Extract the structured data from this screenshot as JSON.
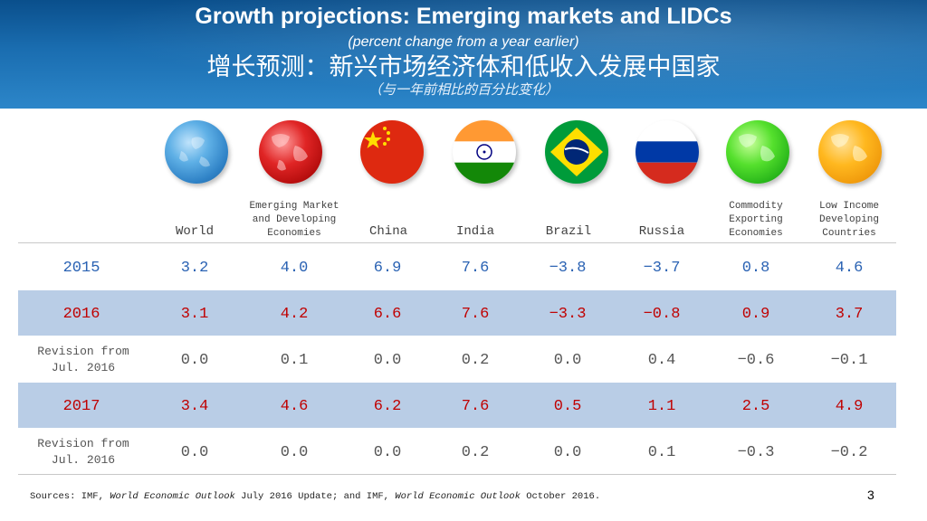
{
  "header": {
    "title_en": "Growth projections:  Emerging markets and LIDCs",
    "subtitle_en": "(percent change from a year earlier)",
    "title_cn": "增长预测：新兴市场经济体和低收入发展中国家",
    "subtitle_cn": "（与一年前相比的百分比变化）"
  },
  "columns": [
    {
      "label": "World",
      "icon": "world-globe-icon"
    },
    {
      "label": "Emerging Market and Developing Economies",
      "icon": "emerging-markets-globe-icon"
    },
    {
      "label": "China",
      "icon": "china-flag-icon"
    },
    {
      "label": "India",
      "icon": "india-flag-icon"
    },
    {
      "label": "Brazil",
      "icon": "brazil-flag-icon"
    },
    {
      "label": "Russia",
      "icon": "russia-flag-icon"
    },
    {
      "label": "Commodity Exporting Economies",
      "icon": "commodity-exporters-globe-icon"
    },
    {
      "label": "Low Income Developing Countries",
      "icon": "lidc-globe-icon"
    }
  ],
  "rows": [
    {
      "label": "2015",
      "values": [
        "3.2",
        "4.0",
        "6.9",
        "7.6",
        "−3.8",
        "−3.7",
        "0.8",
        "4.6"
      ]
    },
    {
      "label": "2016",
      "values": [
        "3.1",
        "4.2",
        "6.6",
        "7.6",
        "−3.3",
        "−0.8",
        "0.9",
        "3.7"
      ]
    },
    {
      "label": "Revision from Jul. 2016",
      "values": [
        "0.0",
        "0.1",
        "0.0",
        "0.2",
        "0.0",
        "0.4",
        "−0.6",
        "−0.1"
      ]
    },
    {
      "label": "2017",
      "values": [
        "3.4",
        "4.6",
        "6.2",
        "7.6",
        "0.5",
        "1.1",
        "2.5",
        "4.9"
      ]
    },
    {
      "label": "Revision from Jul. 2016",
      "values": [
        "0.0",
        "0.0",
        "0.0",
        "0.2",
        "0.0",
        "0.1",
        "−0.3",
        "−0.2"
      ]
    }
  ],
  "footer": {
    "source_prefix": "Sources: IMF, ",
    "source_weo1": "World Economic Outlook",
    "source_mid": " July 2016 Update; and IMF, ",
    "source_weo2": "World Economic Outlook",
    "source_suffix": " October 2016.",
    "page_number": "3"
  },
  "colors": {
    "header_blue": "#1a6db0",
    "row_blue_text": "#2a62b3",
    "row_red_text": "#c00000",
    "row_shade": "#b9cde6"
  }
}
